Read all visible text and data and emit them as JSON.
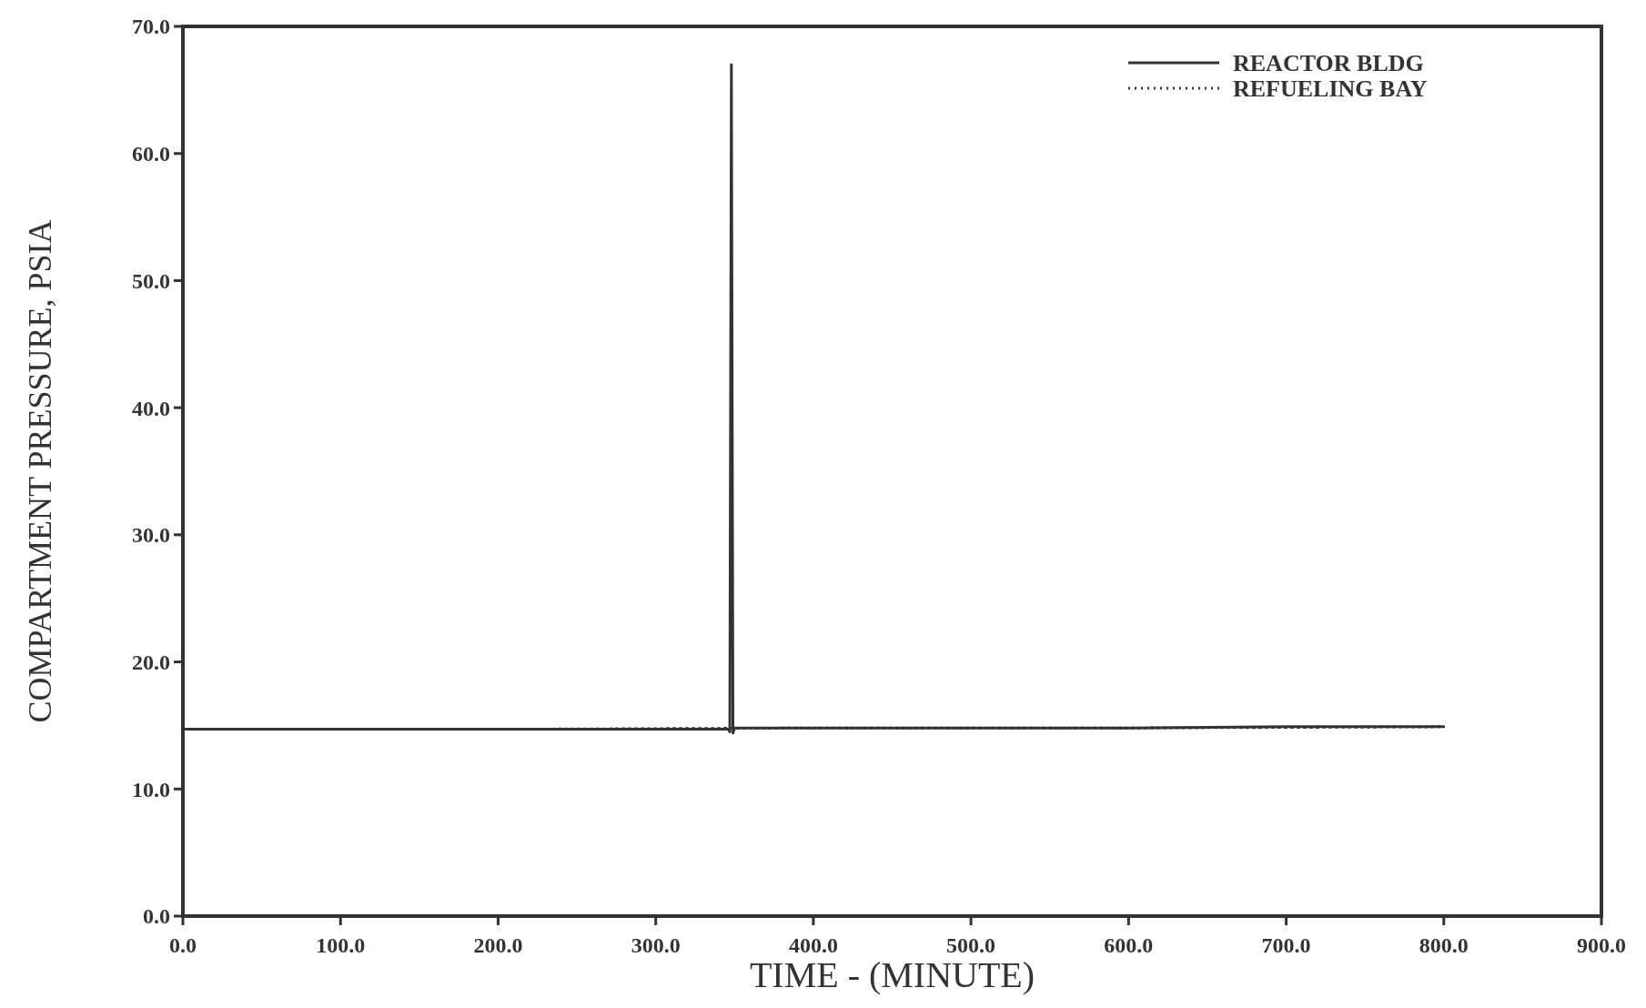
{
  "chart_data": {
    "type": "line",
    "xlabel": "TIME - (MINUTE)",
    "ylabel": "COMPARTMENT PRESSURE, PSIA",
    "xlim": [
      0,
      900
    ],
    "xticks": [
      {
        "value": 0,
        "label": "0.0"
      },
      {
        "value": 100,
        "label": "100.0"
      },
      {
        "value": 200,
        "label": "200.0"
      },
      {
        "value": 300,
        "label": "300.0"
      },
      {
        "value": 400,
        "label": "400.0"
      },
      {
        "value": 500,
        "label": "500.0"
      },
      {
        "value": 600,
        "label": "600.0"
      },
      {
        "value": 700,
        "label": "700.0"
      },
      {
        "value": 800,
        "label": "800.0"
      },
      {
        "value": 900,
        "label": "900.0"
      }
    ],
    "ylim": [
      0,
      70
    ],
    "yticks": [
      {
        "value": 0,
        "label": "0.0"
      },
      {
        "value": 10,
        "label": "10.0"
      },
      {
        "value": 20,
        "label": "20.0"
      },
      {
        "value": 30,
        "label": "30.0"
      },
      {
        "value": 40,
        "label": "40.0"
      },
      {
        "value": 50,
        "label": "50.0"
      },
      {
        "value": 60,
        "label": "60.0"
      },
      {
        "value": 70,
        "label": "70.0"
      }
    ],
    "legend": "top right",
    "grid": false,
    "series": [
      {
        "name": "REFUELING BAY",
        "color": "#333333",
        "line_style": "dotted",
        "x": [
          0,
          200,
          400,
          600,
          800
        ],
        "values": [
          14.7,
          14.7,
          14.8,
          14.8,
          14.9
        ]
      },
      {
        "name": "REACTOR BLDG",
        "color": "#333333",
        "line_style": "solid",
        "x": [
          0,
          100,
          200,
          300,
          346,
          347,
          348,
          349,
          350,
          400,
          500,
          600,
          700,
          800
        ],
        "values": [
          14.7,
          14.7,
          14.7,
          14.7,
          14.7,
          14.5,
          67,
          14.4,
          14.8,
          14.8,
          14.8,
          14.8,
          14.9,
          14.9
        ]
      }
    ]
  }
}
